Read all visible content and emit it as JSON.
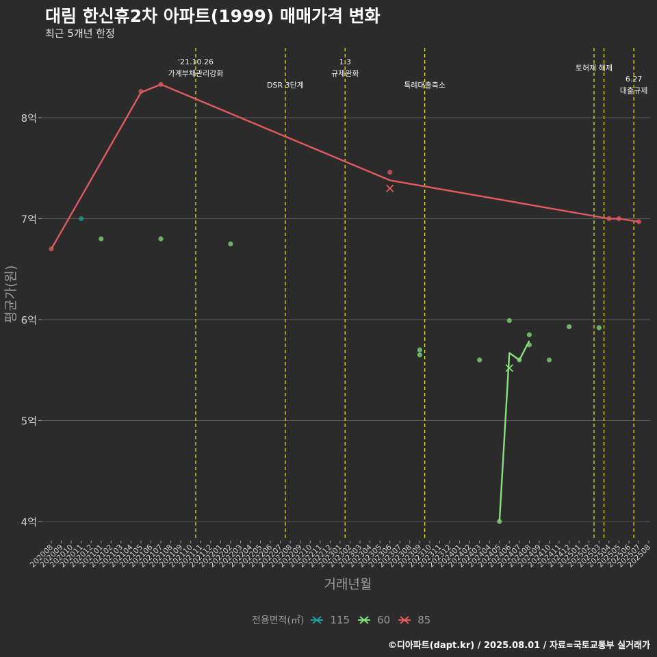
{
  "header": {
    "title": "대림 한신휴2차 아파트(1999) 매매가격 변화",
    "subtitle": "최근 5개년 한정"
  },
  "caption": "©디아파트(dapt.kr) / 2025.08.01 / 자료=국토교통부 실거래가",
  "legend": {
    "title": "전용면적(㎡)",
    "items": [
      {
        "label": "115",
        "color": "#1a9e96"
      },
      {
        "label": "60",
        "color": "#86e07c"
      },
      {
        "label": "85",
        "color": "#e25a5f"
      }
    ]
  },
  "chart_data": {
    "type": "line",
    "xlabel": "거래년월",
    "ylabel": "평균가(원)",
    "ylim": [
      3.85,
      8.9
    ],
    "yticks": [
      {
        "value": 4,
        "label": "4억"
      },
      {
        "value": 5,
        "label": "5억"
      },
      {
        "value": 6,
        "label": "6억"
      },
      {
        "value": 7,
        "label": "7억"
      },
      {
        "value": 8,
        "label": "8억"
      }
    ],
    "categories": [
      "202008",
      "202009",
      "202010",
      "202011",
      "202012",
      "202101",
      "202102",
      "202103",
      "202104",
      "202105",
      "202106",
      "202107",
      "202108",
      "202109",
      "202110",
      "202111",
      "202112",
      "202201",
      "202202",
      "202203",
      "202204",
      "202205",
      "202206",
      "202207",
      "202208",
      "202209",
      "202210",
      "202211",
      "202212",
      "202301",
      "202302",
      "202303",
      "202304",
      "202305",
      "202306",
      "202307",
      "202308",
      "202309",
      "202310",
      "202311",
      "202312",
      "202401",
      "202402",
      "202403",
      "202404",
      "202405",
      "202406",
      "202407",
      "202408",
      "202409",
      "202410",
      "202411",
      "202412",
      "202501",
      "202502",
      "202503",
      "202504",
      "202505",
      "202506",
      "202507",
      "202508"
    ],
    "events": [
      {
        "x": 14.5,
        "lines": [
          "'21.10.26",
          "가계부채관리강화"
        ],
        "level": "top"
      },
      {
        "x": 23.5,
        "lines": [
          "DSR 3단계"
        ],
        "level": "mid"
      },
      {
        "x": 29.5,
        "lines": [
          "1.3",
          "규제완화"
        ],
        "level": "top"
      },
      {
        "x": 37.5,
        "lines": [
          "특례대출축소"
        ],
        "level": "mid"
      },
      {
        "x": 54.5,
        "lines": [
          "토허제 해제"
        ],
        "level": "high"
      },
      {
        "x": 55.5,
        "lines": [],
        "level": "none"
      },
      {
        "x": 58.5,
        "lines": [
          "6.27",
          "대출규제"
        ],
        "level": "low"
      }
    ],
    "series": [
      {
        "name": "115",
        "color": "#1a9e96",
        "line": [],
        "points": [
          [
            3,
            7.0
          ]
        ],
        "crosses": []
      },
      {
        "name": "60",
        "color": "#86e07c",
        "line": [
          [
            45,
            4.0
          ],
          [
            46,
            5.67
          ],
          [
            47,
            5.6
          ],
          [
            48,
            5.79
          ]
        ],
        "points": [
          [
            5,
            6.8
          ],
          [
            11,
            6.8
          ],
          [
            18,
            6.75
          ],
          [
            37,
            5.7
          ],
          [
            37,
            5.65
          ],
          [
            43,
            5.6
          ],
          [
            45,
            4.0
          ],
          [
            46,
            5.99
          ],
          [
            47,
            5.6
          ],
          [
            48,
            5.85
          ],
          [
            48,
            5.75
          ],
          [
            50,
            5.6
          ],
          [
            52,
            5.93
          ],
          [
            55,
            5.92
          ]
        ],
        "crosses": [
          [
            46,
            5.52
          ]
        ]
      },
      {
        "name": "85",
        "color": "#e25a5f",
        "line": [
          [
            0,
            6.7
          ],
          [
            9,
            8.25
          ],
          [
            11,
            8.33
          ],
          [
            34,
            7.38
          ],
          [
            56,
            7.0
          ],
          [
            57,
            7.0
          ],
          [
            59,
            6.97
          ]
        ],
        "points": [
          [
            0,
            6.7
          ],
          [
            9,
            8.26
          ],
          [
            11,
            8.33
          ],
          [
            34,
            7.46
          ],
          [
            56,
            7.0
          ],
          [
            57,
            7.0
          ],
          [
            59,
            6.97
          ]
        ],
        "crosses": [
          [
            34,
            7.3
          ]
        ]
      }
    ]
  }
}
